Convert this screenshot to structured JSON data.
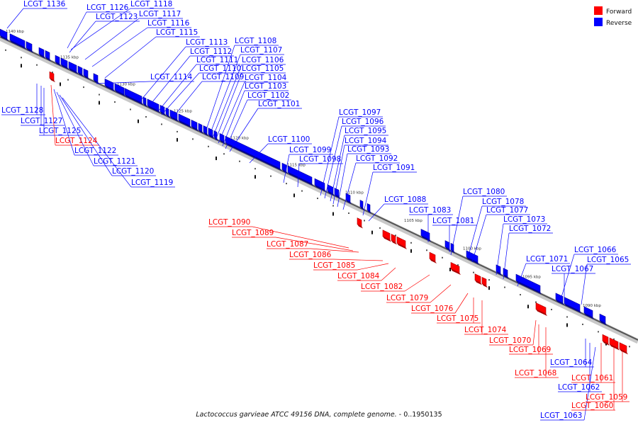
{
  "caption_species": "Lactococcus garvieae ATCC 49156 DNA, complete genome.",
  "caption_range": " - 0..1950135",
  "legend": [
    {
      "label": "Forward",
      "color": "#ff0000"
    },
    {
      "label": "Reverse",
      "color": "#0000ff"
    }
  ],
  "ticks": [
    "1140 kbp",
    "1135 kbp",
    "1130 kbp",
    "1125 kbp",
    "1120 kbp",
    "1115 kbp",
    "1110 kbp",
    "1105 kbp",
    "1100 kbp",
    "1095 kbp",
    "1090 kbp"
  ],
  "genes": [
    {
      "name": "LCGT_1136",
      "strand": "reverse"
    },
    {
      "name": "LCGT_1126",
      "strand": "reverse"
    },
    {
      "name": "LCGT_1118",
      "strand": "reverse"
    },
    {
      "name": "LCGT_1123",
      "strand": "reverse"
    },
    {
      "name": "LCGT_1117",
      "strand": "reverse"
    },
    {
      "name": "LCGT_1116",
      "strand": "reverse"
    },
    {
      "name": "LCGT_1115",
      "strand": "reverse"
    },
    {
      "name": "LCGT_1113",
      "strand": "reverse"
    },
    {
      "name": "LCGT_1108",
      "strand": "reverse"
    },
    {
      "name": "LCGT_1112",
      "strand": "reverse"
    },
    {
      "name": "LCGT_1107",
      "strand": "reverse"
    },
    {
      "name": "LCGT_1111",
      "strand": "reverse"
    },
    {
      "name": "LCGT_1106",
      "strand": "reverse"
    },
    {
      "name": "LCGT_1110",
      "strand": "reverse"
    },
    {
      "name": "LCGT_1105",
      "strand": "reverse"
    },
    {
      "name": "LCGT_1114",
      "strand": "reverse"
    },
    {
      "name": "LCGT_1109",
      "strand": "reverse"
    },
    {
      "name": "LCGT_1104",
      "strand": "reverse"
    },
    {
      "name": "LCGT_1103",
      "strand": "reverse"
    },
    {
      "name": "LCGT_1102",
      "strand": "reverse"
    },
    {
      "name": "LCGT_1101",
      "strand": "reverse"
    },
    {
      "name": "LCGT_1128",
      "strand": "reverse"
    },
    {
      "name": "LCGT_1127",
      "strand": "reverse"
    },
    {
      "name": "LCGT_1125",
      "strand": "reverse"
    },
    {
      "name": "LCGT_1124",
      "strand": "forward"
    },
    {
      "name": "LCGT_1122",
      "strand": "reverse"
    },
    {
      "name": "LCGT_1121",
      "strand": "reverse"
    },
    {
      "name": "LCGT_1120",
      "strand": "reverse"
    },
    {
      "name": "LCGT_1119",
      "strand": "reverse"
    },
    {
      "name": "LCGT_1100",
      "strand": "reverse"
    },
    {
      "name": "LCGT_1099",
      "strand": "reverse"
    },
    {
      "name": "LCGT_1098",
      "strand": "reverse"
    },
    {
      "name": "LCGT_1097",
      "strand": "reverse"
    },
    {
      "name": "LCGT_1096",
      "strand": "reverse"
    },
    {
      "name": "LCGT_1095",
      "strand": "reverse"
    },
    {
      "name": "LCGT_1094",
      "strand": "reverse"
    },
    {
      "name": "LCGT_1093",
      "strand": "reverse"
    },
    {
      "name": "LCGT_1092",
      "strand": "reverse"
    },
    {
      "name": "LCGT_1091",
      "strand": "reverse"
    },
    {
      "name": "LCGT_1088",
      "strand": "reverse"
    },
    {
      "name": "LCGT_1083",
      "strand": "reverse"
    },
    {
      "name": "LCGT_1081",
      "strand": "reverse"
    },
    {
      "name": "LCGT_1080",
      "strand": "reverse"
    },
    {
      "name": "LCGT_1078",
      "strand": "reverse"
    },
    {
      "name": "LCGT_1077",
      "strand": "reverse"
    },
    {
      "name": "LCGT_1073",
      "strand": "reverse"
    },
    {
      "name": "LCGT_1072",
      "strand": "reverse"
    },
    {
      "name": "LCGT_1071",
      "strand": "reverse"
    },
    {
      "name": "LCGT_1067",
      "strand": "reverse"
    },
    {
      "name": "LCGT_1066",
      "strand": "reverse"
    },
    {
      "name": "LCGT_1065",
      "strand": "reverse"
    },
    {
      "name": "LCGT_1090",
      "strand": "forward"
    },
    {
      "name": "LCGT_1089",
      "strand": "forward"
    },
    {
      "name": "LCGT_1087",
      "strand": "forward"
    },
    {
      "name": "LCGT_1086",
      "strand": "forward"
    },
    {
      "name": "LCGT_1085",
      "strand": "forward"
    },
    {
      "name": "LCGT_1084",
      "strand": "forward"
    },
    {
      "name": "LCGT_1082",
      "strand": "forward"
    },
    {
      "name": "LCGT_1079",
      "strand": "forward"
    },
    {
      "name": "LCGT_1076",
      "strand": "forward"
    },
    {
      "name": "LCGT_1075",
      "strand": "forward"
    },
    {
      "name": "LCGT_1074",
      "strand": "forward"
    },
    {
      "name": "LCGT_1070",
      "strand": "forward"
    },
    {
      "name": "LCGT_1069",
      "strand": "forward"
    },
    {
      "name": "LCGT_1068",
      "strand": "forward"
    },
    {
      "name": "LCGT_1064",
      "strand": "reverse"
    },
    {
      "name": "LCGT_1062",
      "strand": "reverse"
    },
    {
      "name": "LCGT_1063",
      "strand": "reverse"
    },
    {
      "name": "LCGT_1061",
      "strand": "forward"
    },
    {
      "name": "LCGT_1060",
      "strand": "forward"
    },
    {
      "name": "LCGT_1059",
      "strand": "forward"
    }
  ]
}
